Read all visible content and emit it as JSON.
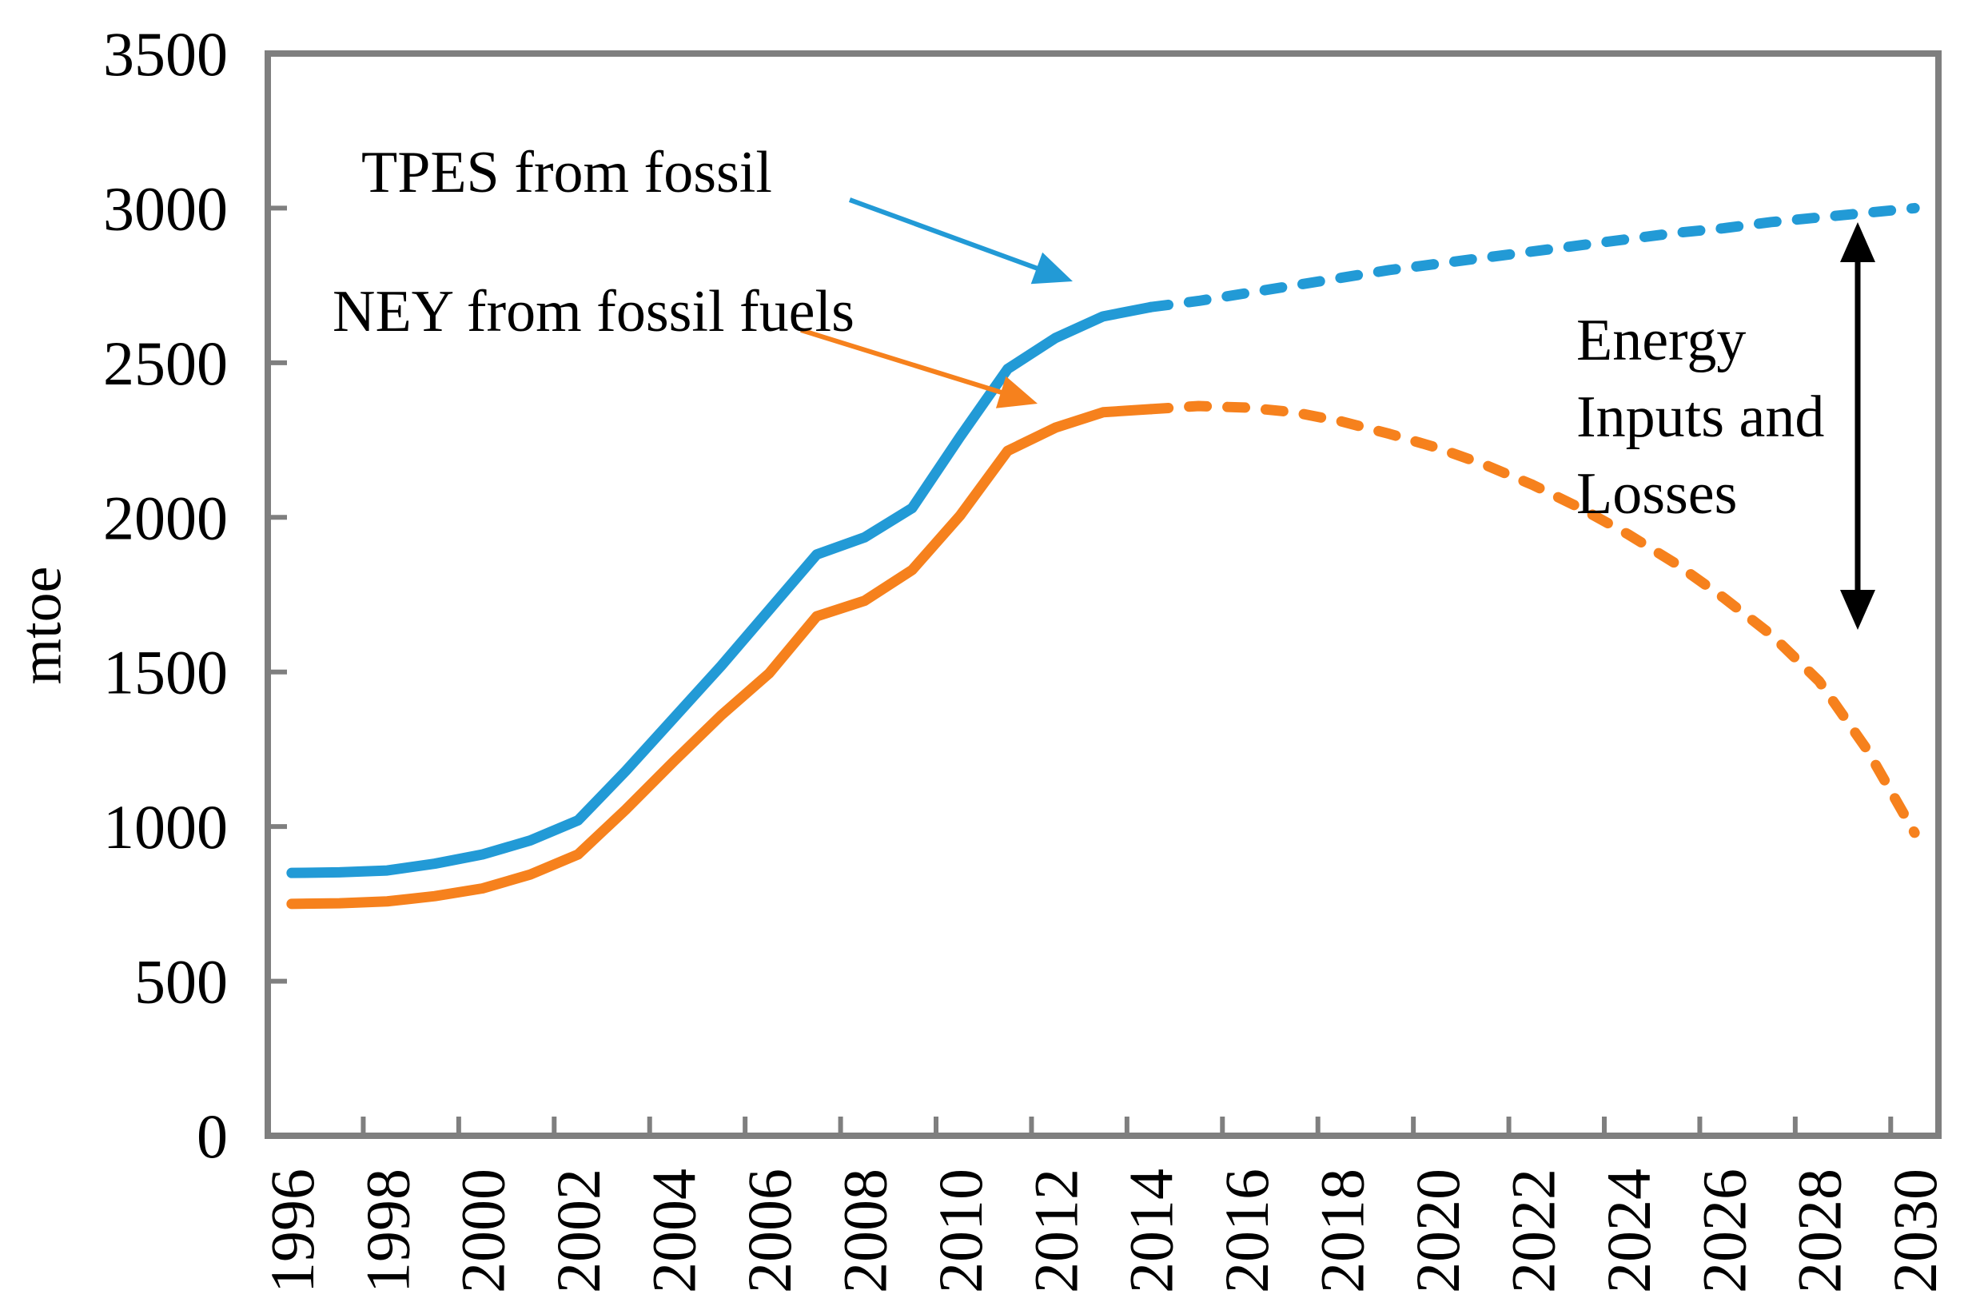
{
  "page": {
    "background": "#FFFFFF"
  },
  "chart_data": {
    "type": "line",
    "title": "",
    "xlabel": "",
    "ylabel": "mtoe",
    "x": [
      1996,
      1997,
      1998,
      1999,
      2000,
      2001,
      2002,
      2003,
      2004,
      2005,
      2006,
      2007,
      2008,
      2009,
      2010,
      2011,
      2012,
      2013,
      2014,
      2015,
      2016,
      2017,
      2018,
      2019,
      2020,
      2021,
      2022,
      2023,
      2024,
      2025,
      2026,
      2027,
      2028,
      2029,
      2030
    ],
    "x_label_every": 2,
    "ylim": [
      0,
      3500
    ],
    "ytick_step": 500,
    "grid": false,
    "legend_position": "none",
    "axis_color": "#7F7F7F",
    "series": [
      {
        "name": "TPES from fossil",
        "color": "#229AD6",
        "solid_until_x": 2014,
        "projected_dashed_after": true,
        "values": [
          850,
          852,
          858,
          880,
          910,
          955,
          1020,
          1180,
          1350,
          1520,
          1700,
          1880,
          1935,
          2030,
          2260,
          2480,
          2580,
          2650,
          2680,
          2700,
          2725,
          2750,
          2775,
          2800,
          2820,
          2840,
          2860,
          2880,
          2900,
          2920,
          2935,
          2955,
          2970,
          2985,
          3000
        ]
      },
      {
        "name": "NEY from fossil fuels",
        "color": "#F6811D",
        "solid_until_x": 2014,
        "projected_dashed_after": true,
        "values": [
          750,
          752,
          758,
          775,
          800,
          845,
          910,
          1055,
          1210,
          1360,
          1495,
          1680,
          1730,
          1830,
          2005,
          2215,
          2290,
          2340,
          2350,
          2360,
          2355,
          2340,
          2310,
          2270,
          2225,
          2170,
          2105,
          2030,
          1945,
          1850,
          1740,
          1620,
          1470,
          1250,
          980
        ]
      }
    ],
    "annotations": {
      "tpes_label": "TPES from fossil",
      "ney_label": "NEY from fossil fuels",
      "gap_label": "Energy\nInputs and\nLosses",
      "gap_arrow_meaning": "double-headed vertical arrow between the TPES and NEY projected curves"
    }
  }
}
